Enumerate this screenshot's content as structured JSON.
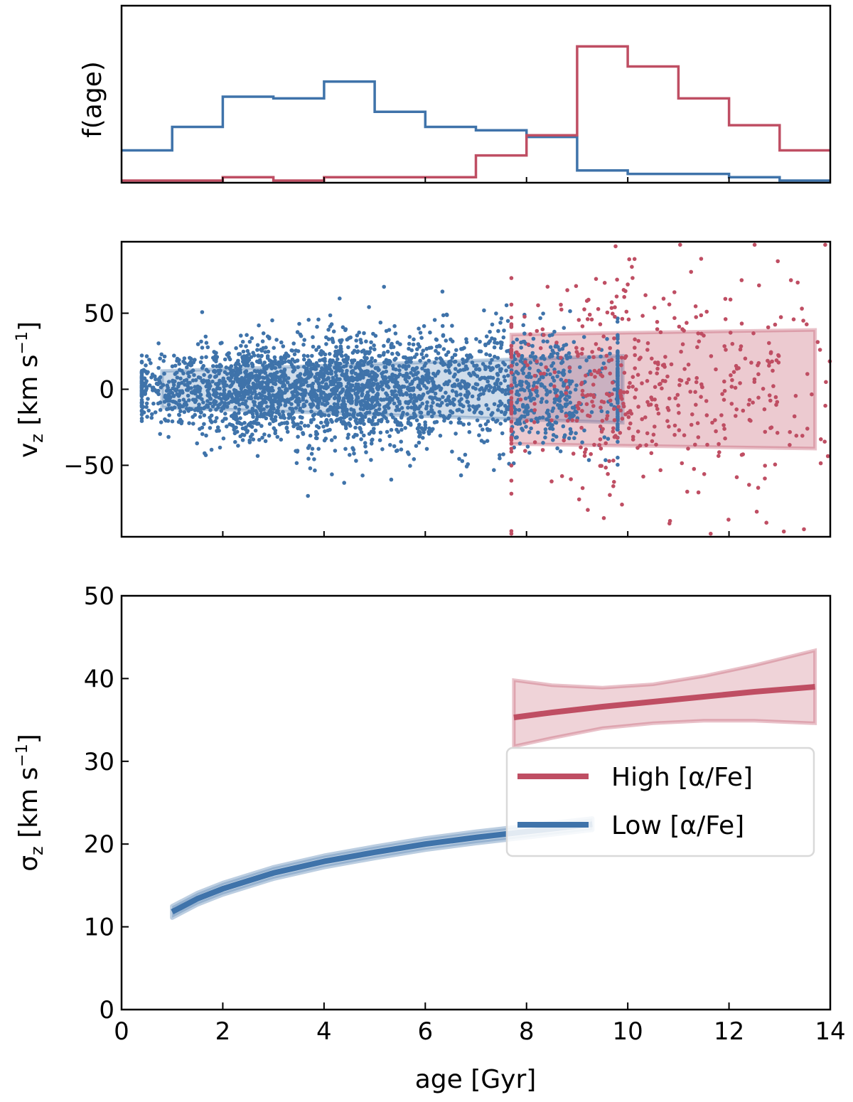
{
  "chart_data": [
    {
      "id": "hist",
      "type": "step-histogram",
      "ylabel": "f(age)",
      "xlim": [
        0,
        14
      ],
      "ylim": [
        0,
        1.0
      ],
      "bin_edges": [
        0,
        1,
        2,
        3,
        4,
        5,
        6,
        7,
        8,
        9,
        10,
        11,
        12,
        13,
        14
      ],
      "series": [
        {
          "name": "Low [α/Fe]",
          "color": "#3f73aa",
          "values": [
            0.18,
            0.32,
            0.5,
            0.49,
            0.59,
            0.41,
            0.32,
            0.3,
            0.26,
            0.06,
            0.04,
            0.04,
            0.02,
            0.0
          ]
        },
        {
          "name": "High [α/Fe]",
          "color": "#bf4e63",
          "values": [
            0.0,
            0.0,
            0.02,
            0.0,
            0.02,
            0.02,
            0.02,
            0.15,
            0.27,
            0.8,
            0.68,
            0.49,
            0.33,
            0.18
          ]
        }
      ]
    },
    {
      "id": "scatter",
      "type": "scatter",
      "ylabel_main": "v",
      "ylabel_sub": "z",
      "ylabel_unit": " [km s",
      "ylabel_sup": "−1",
      "ylabel_close": "]",
      "xlim": [
        0,
        14
      ],
      "ylim": [
        -97,
        97
      ],
      "yticks": [
        -50,
        0,
        50
      ],
      "ytick_labels": [
        "−50",
        "0",
        "50"
      ],
      "low_points": 3000,
      "high_points": 500,
      "low_range": [
        0.4,
        9.8
      ],
      "high_range": [
        7.7,
        14.0
      ],
      "bands": [
        {
          "name": "Low [α/Fe]",
          "color": "#3f73aa",
          "x": [
            0.8,
            9.9
          ],
          "halfwidth": [
            12,
            22
          ]
        },
        {
          "name": "High [α/Fe]",
          "color": "#bf4e63",
          "x": [
            7.7,
            13.7
          ],
          "halfwidth": [
            36,
            39
          ]
        }
      ]
    },
    {
      "id": "sigma",
      "type": "line",
      "xlabel": "age [Gyr]",
      "ylabel_main": "σ",
      "ylabel_sub": "z",
      "ylabel_unit": " [km s",
      "ylabel_sup": "−1",
      "ylabel_close": "]",
      "xlim": [
        0,
        14
      ],
      "ylim": [
        0,
        50
      ],
      "xticks": [
        0,
        2,
        4,
        6,
        8,
        10,
        12,
        14
      ],
      "xtick_labels": [
        "0",
        "2",
        "4",
        "6",
        "8",
        "10",
        "12",
        "14"
      ],
      "yticks": [
        0,
        10,
        20,
        30,
        40,
        50
      ],
      "ytick_labels": [
        "0",
        "10",
        "20",
        "30",
        "40",
        "50"
      ],
      "series": [
        {
          "name": "High [α/Fe]",
          "color": "#bf4e63",
          "x": [
            7.75,
            8.5,
            9.5,
            10.5,
            11.5,
            12.5,
            13.7
          ],
          "y": [
            35.3,
            35.9,
            36.6,
            37.2,
            37.8,
            38.4,
            39.0
          ],
          "lower": [
            31.8,
            32.8,
            34.0,
            34.6,
            34.9,
            34.9,
            34.6
          ],
          "upper": [
            39.8,
            39.2,
            38.9,
            39.3,
            40.3,
            41.6,
            43.4
          ]
        },
        {
          "name": "Low [α/Fe]",
          "color": "#3f73aa",
          "x": [
            1.0,
            1.5,
            2.0,
            3.0,
            4.0,
            5.0,
            6.0,
            7.0,
            8.0,
            9.3
          ],
          "y": [
            11.8,
            13.4,
            14.6,
            16.5,
            17.9,
            19.0,
            20.0,
            20.8,
            21.5,
            22.4
          ],
          "band": 0.7
        }
      ],
      "legend": {
        "position": "lower-right",
        "entries": [
          {
            "label": "High [α/Fe]",
            "color": "#bf4e63"
          },
          {
            "label": "Low [α/Fe]",
            "color": "#3f73aa"
          }
        ]
      }
    }
  ]
}
